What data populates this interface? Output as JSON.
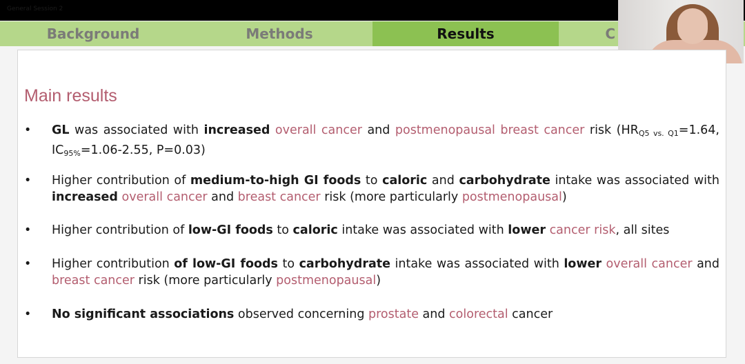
{
  "window": {
    "title": "General Session 2"
  },
  "tabs": [
    {
      "label": "Background",
      "active": false
    },
    {
      "label": "Methods",
      "active": false
    },
    {
      "label": "Results",
      "active": true
    },
    {
      "label": "C",
      "active": false
    }
  ],
  "colors": {
    "accent": "#b35d6f",
    "tab_bar": "#b5d78a",
    "tab_active": "#8cc152"
  },
  "slide": {
    "title": "Main results",
    "bullets": [
      {
        "segments": [
          {
            "t": "GL",
            "s": "b"
          },
          {
            "t": " was associated with ",
            "s": "n"
          },
          {
            "t": "increased",
            "s": "b"
          },
          {
            "t": " ",
            "s": "n"
          },
          {
            "t": "overall cancer",
            "s": "h"
          },
          {
            "t": " and ",
            "s": "n"
          },
          {
            "t": "postmenopausal breast cancer",
            "s": "h"
          },
          {
            "t": " risk (HR",
            "s": "n"
          },
          {
            "t": "Q5 vs. Q1",
            "s": "sub"
          },
          {
            "t": "=1.64, IC",
            "s": "n"
          },
          {
            "t": "95%",
            "s": "sub"
          },
          {
            "t": "=1.06-2.55, P=0.03)",
            "s": "n"
          }
        ]
      },
      {
        "segments": [
          {
            "t": "Higher contribution of ",
            "s": "n"
          },
          {
            "t": "medium-to-high GI foods",
            "s": "b"
          },
          {
            "t": " to ",
            "s": "n"
          },
          {
            "t": "caloric",
            "s": "b"
          },
          {
            "t": " and ",
            "s": "n"
          },
          {
            "t": "carbohydrate",
            "s": "b"
          },
          {
            "t": " intake was associated with ",
            "s": "n"
          },
          {
            "t": "increased",
            "s": "b"
          },
          {
            "t": " ",
            "s": "n"
          },
          {
            "t": "overall cancer",
            "s": "h"
          },
          {
            "t": " and ",
            "s": "n"
          },
          {
            "t": "breast cancer",
            "s": "h"
          },
          {
            "t": " risk (more particularly ",
            "s": "n"
          },
          {
            "t": "postmenopausal",
            "s": "h"
          },
          {
            "t": ")",
            "s": "n"
          }
        ]
      },
      {
        "segments": [
          {
            "t": "Higher contribution of ",
            "s": "n"
          },
          {
            "t": "low-GI foods",
            "s": "b"
          },
          {
            "t": " to ",
            "s": "n"
          },
          {
            "t": "caloric",
            "s": "b"
          },
          {
            "t": " intake was associated with ",
            "s": "n"
          },
          {
            "t": "lower",
            "s": "b"
          },
          {
            "t": " ",
            "s": "n"
          },
          {
            "t": "cancer risk",
            "s": "h"
          },
          {
            "t": ", all sites",
            "s": "n"
          }
        ]
      },
      {
        "segments": [
          {
            "t": "Higher contribution ",
            "s": "n"
          },
          {
            "t": "of low-GI foods",
            "s": "b"
          },
          {
            "t": " to ",
            "s": "n"
          },
          {
            "t": "carbohydrate",
            "s": "b"
          },
          {
            "t": " intake was associated with ",
            "s": "n"
          },
          {
            "t": "lower",
            "s": "b"
          },
          {
            "t": " ",
            "s": "n"
          },
          {
            "t": "overall cancer",
            "s": "h"
          },
          {
            "t": " and ",
            "s": "n"
          },
          {
            "t": "breast cancer",
            "s": "h"
          },
          {
            "t": " risk (more particularly ",
            "s": "n"
          },
          {
            "t": "postmenopausal",
            "s": "h"
          },
          {
            "t": ")",
            "s": "n"
          }
        ]
      },
      {
        "segments": [
          {
            "t": "No significant associations",
            "s": "b"
          },
          {
            "t": " observed concerning ",
            "s": "n"
          },
          {
            "t": "prostate",
            "s": "h"
          },
          {
            "t": " and ",
            "s": "n"
          },
          {
            "t": "colorectal",
            "s": "h"
          },
          {
            "t": " cancer",
            "s": "n"
          }
        ]
      }
    ]
  }
}
